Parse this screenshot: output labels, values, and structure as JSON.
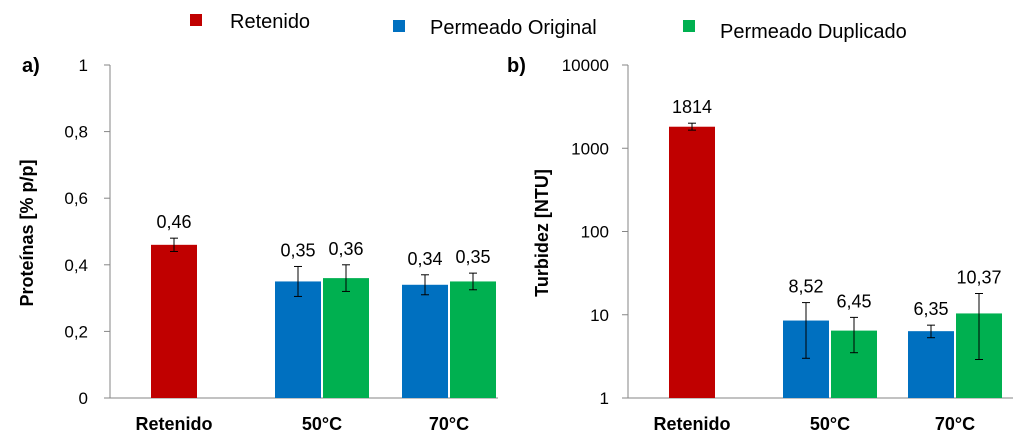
{
  "legend": [
    {
      "label": "Retenido",
      "color": "#C00000"
    },
    {
      "label": "Permeado Original",
      "color": "#0070C0"
    },
    {
      "label": "Permeado Duplicado",
      "color": "#00B050"
    }
  ],
  "chart_data": [
    {
      "type": "bar",
      "panel_label": "a)",
      "ylabel": "Proteínas [% p/p]",
      "ylim": [
        0,
        1
      ],
      "yscale": "linear",
      "yticks": [
        0,
        0.2,
        0.4,
        0.6,
        0.8,
        1
      ],
      "ytick_labels": [
        "0",
        "0,2",
        "0,4",
        "0,6",
        "0,8",
        "1"
      ],
      "categories": [
        "Retenido",
        "50°C",
        "70°C"
      ],
      "bars": [
        {
          "category": "Retenido",
          "series": "Retenido",
          "value": 0.46,
          "label": "0,46",
          "error": 0.02,
          "color": "#C00000"
        },
        {
          "category": "50°C",
          "series": "Permeado Original",
          "value": 0.35,
          "label": "0,35",
          "error": 0.045,
          "color": "#0070C0"
        },
        {
          "category": "50°C",
          "series": "Permeado Duplicado",
          "value": 0.36,
          "label": "0,36",
          "error": 0.04,
          "color": "#00B050"
        },
        {
          "category": "70°C",
          "series": "Permeado Original",
          "value": 0.34,
          "label": "0,34",
          "error": 0.03,
          "color": "#0070C0"
        },
        {
          "category": "70°C",
          "series": "Permeado Duplicado",
          "value": 0.35,
          "label": "0,35",
          "error": 0.025,
          "color": "#00B050"
        }
      ]
    },
    {
      "type": "bar",
      "panel_label": "b)",
      "ylabel": "Turbidez [NTU]",
      "ylim": [
        1,
        10000
      ],
      "yscale": "log",
      "yticks": [
        1,
        10,
        100,
        1000,
        10000
      ],
      "ytick_labels": [
        "1",
        "10",
        "100",
        "1000",
        "10000"
      ],
      "categories": [
        "Retenido",
        "50°C",
        "70°C"
      ],
      "bars": [
        {
          "category": "Retenido",
          "series": "Retenido",
          "value": 1814,
          "label": "1814",
          "err_low": 1650,
          "err_high": 2000,
          "color": "#C00000"
        },
        {
          "category": "50°C",
          "series": "Permeado Original",
          "value": 8.52,
          "label": "8,52",
          "err_low": 3.0,
          "err_high": 14.0,
          "color": "#0070C0"
        },
        {
          "category": "50°C",
          "series": "Permeado Duplicado",
          "value": 6.45,
          "label": "6,45",
          "err_low": 3.5,
          "err_high": 9.3,
          "color": "#00B050"
        },
        {
          "category": "70°C",
          "series": "Permeado Original",
          "value": 6.35,
          "label": "6,35",
          "err_low": 5.3,
          "err_high": 7.5,
          "color": "#0070C0"
        },
        {
          "category": "70°C",
          "series": "Permeado Duplicado",
          "value": 10.37,
          "label": "10,37",
          "err_low": 2.9,
          "err_high": 18.0,
          "color": "#00B050"
        }
      ]
    }
  ]
}
